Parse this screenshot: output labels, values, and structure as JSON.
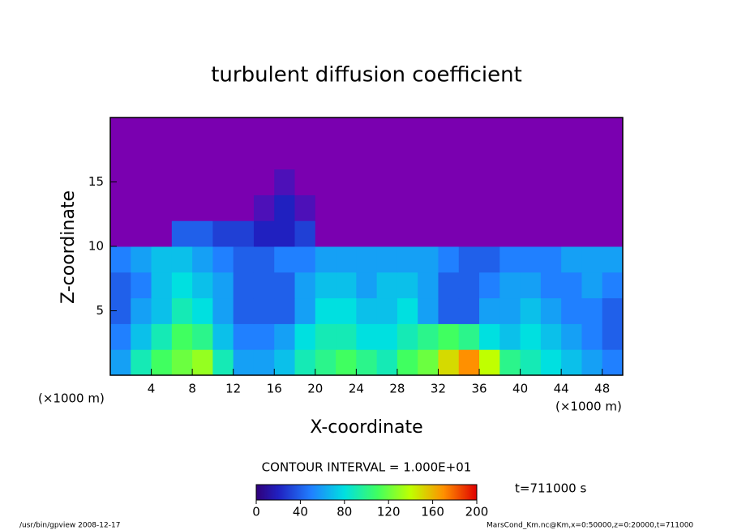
{
  "chart_data": {
    "type": "heatmap",
    "title": "turbulent diffusion coefficient",
    "xlabel": "X-coordinate",
    "ylabel": "Z-coordinate",
    "xunit_left": "(×1000 m)",
    "xunit_right": "(×1000 m)",
    "contour_interval": "CONTOUR INTERVAL = 1.000E+01",
    "time_label": "t=711000 s",
    "footer_left": "/usr/bin/gpview   2008-12-17",
    "footer_right": "MarsCond_Km.nc@Km,x=0:50000,z=0:20000,t=711000",
    "xlim": [
      0,
      50
    ],
    "ylim": [
      0,
      20
    ],
    "xticks": [
      4,
      8,
      12,
      16,
      20,
      24,
      28,
      32,
      36,
      40,
      44,
      48
    ],
    "yticks": [
      5,
      10,
      15
    ],
    "x": [
      1,
      3,
      5,
      7,
      9,
      11,
      13,
      15,
      17,
      19,
      21,
      23,
      25,
      27,
      29,
      31,
      33,
      35,
      37,
      39,
      41,
      43,
      45,
      47,
      49
    ],
    "y": [
      1,
      3,
      5,
      7,
      9,
      11,
      13,
      15,
      17,
      19
    ],
    "z": [
      [
        60,
        90,
        110,
        120,
        130,
        90,
        60,
        60,
        70,
        90,
        100,
        110,
        100,
        90,
        110,
        120,
        150,
        170,
        140,
        100,
        90,
        80,
        70,
        60,
        50
      ],
      [
        50,
        70,
        90,
        110,
        100,
        70,
        50,
        50,
        60,
        80,
        90,
        90,
        80,
        80,
        90,
        100,
        110,
        100,
        80,
        70,
        80,
        70,
        60,
        50,
        40
      ],
      [
        40,
        60,
        70,
        90,
        80,
        60,
        40,
        40,
        40,
        60,
        80,
        80,
        70,
        70,
        80,
        60,
        40,
        40,
        60,
        60,
        70,
        60,
        50,
        50,
        40
      ],
      [
        40,
        50,
        70,
        80,
        70,
        60,
        40,
        40,
        40,
        60,
        70,
        70,
        60,
        70,
        70,
        60,
        40,
        40,
        50,
        60,
        60,
        50,
        50,
        60,
        50
      ],
      [
        50,
        60,
        70,
        70,
        60,
        50,
        40,
        40,
        50,
        50,
        60,
        60,
        60,
        60,
        60,
        60,
        50,
        40,
        40,
        50,
        50,
        50,
        60,
        60,
        60
      ],
      [
        0,
        0,
        0,
        40,
        40,
        30,
        30,
        20,
        20,
        30,
        0,
        0,
        0,
        0,
        0,
        0,
        0,
        0,
        0,
        0,
        0,
        0,
        0,
        0,
        0
      ],
      [
        0,
        0,
        0,
        0,
        0,
        0,
        0,
        10,
        20,
        10,
        0,
        0,
        0,
        0,
        0,
        0,
        0,
        0,
        0,
        0,
        0,
        0,
        0,
        0,
        0
      ],
      [
        0,
        0,
        0,
        0,
        0,
        0,
        0,
        0,
        10,
        0,
        0,
        0,
        0,
        0,
        0,
        0,
        0,
        0,
        0,
        0,
        0,
        0,
        0,
        0,
        0
      ],
      [
        0,
        0,
        0,
        0,
        0,
        0,
        0,
        0,
        0,
        0,
        0,
        0,
        0,
        0,
        0,
        0,
        0,
        0,
        0,
        0,
        0,
        0,
        0,
        0,
        0
      ],
      [
        0,
        0,
        0,
        0,
        0,
        0,
        0,
        0,
        0,
        0,
        0,
        0,
        0,
        0,
        0,
        0,
        0,
        0,
        0,
        0,
        0,
        0,
        0,
        0,
        0
      ]
    ],
    "clim": [
      0,
      200
    ],
    "cticks": [
      0,
      40,
      80,
      120,
      160,
      200
    ]
  }
}
